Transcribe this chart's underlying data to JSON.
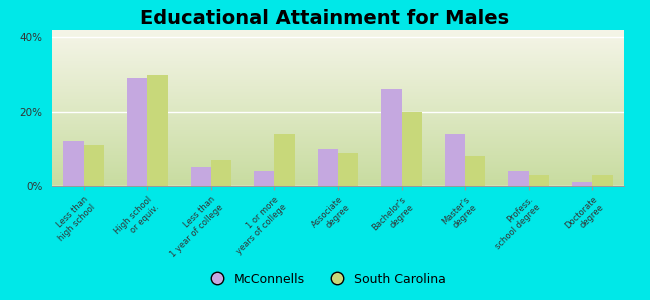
{
  "title": "Educational Attainment for Males",
  "categories": [
    "Less than\nhigh school",
    "High school\nor equiv.",
    "Less than\n1 year of college",
    "1 or more\nyears of college",
    "Associate\ndegree",
    "Bachelor's\ndegree",
    "Master's\ndegree",
    "Profess.\nschool degree",
    "Doctorate\ndegree"
  ],
  "mcconnells": [
    12,
    29,
    5,
    4,
    10,
    26,
    14,
    4,
    1
  ],
  "south_carolina": [
    11,
    30,
    7,
    14,
    9,
    20,
    8,
    3,
    3
  ],
  "mcconnells_color": "#c5a8e0",
  "south_carolina_color": "#c8d87a",
  "background_top": "#f5f5e8",
  "background_bottom": "#c8dca0",
  "outer_background": "#00e8e8",
  "ylim": [
    0,
    42
  ],
  "yticks": [
    0,
    20,
    40
  ],
  "ytick_labels": [
    "0%",
    "20%",
    "40%"
  ],
  "bar_width": 0.32,
  "title_fontsize": 14,
  "legend_labels": [
    "McConnells",
    "South Carolina"
  ]
}
